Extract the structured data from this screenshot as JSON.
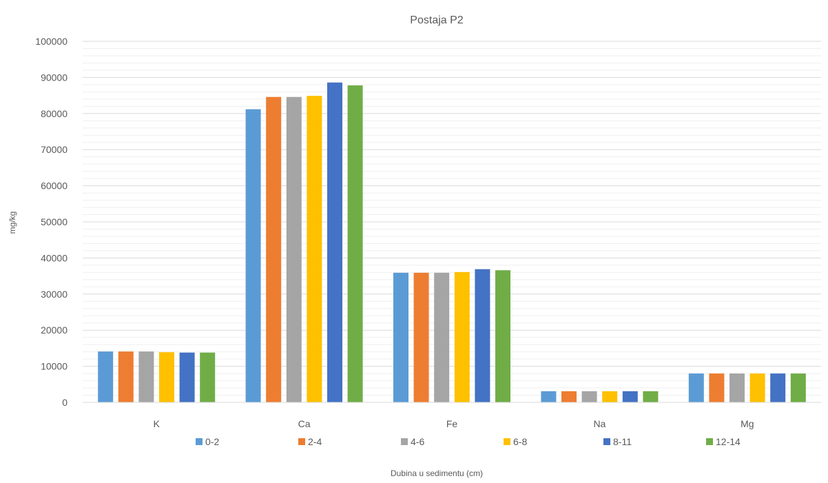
{
  "chart_data": {
    "type": "bar",
    "title": "Postaja P2",
    "xlabel": "Dubina u sedimentu (cm)",
    "ylabel": "mg/kg",
    "categories": [
      "K",
      "Ca",
      "Fe",
      "Na",
      "Mg"
    ],
    "ylim": [
      0,
      100000
    ],
    "yticks": [
      "0",
      "10000",
      "20000",
      "30000",
      "40000",
      "50000",
      "60000",
      "70000",
      "80000",
      "90000",
      "100000"
    ],
    "grid": true,
    "legend_position": "bottom",
    "series": [
      {
        "name": "0-2",
        "color": "#5B9BD5",
        "values": [
          14100,
          81200,
          35900,
          3100,
          8000
        ]
      },
      {
        "name": "2-4",
        "color": "#ED7D31",
        "values": [
          14100,
          84600,
          35900,
          3100,
          8000
        ]
      },
      {
        "name": "4-6",
        "color": "#A5A5A5",
        "values": [
          14100,
          84600,
          35900,
          3100,
          8000
        ]
      },
      {
        "name": "6-8",
        "color": "#FFC000",
        "values": [
          13900,
          84900,
          36100,
          3100,
          8000
        ]
      },
      {
        "name": "8-11",
        "color": "#4472C4",
        "values": [
          13800,
          88600,
          36900,
          3100,
          8000
        ]
      },
      {
        "name": "12-14",
        "color": "#70AD47",
        "values": [
          13800,
          87800,
          36600,
          3100,
          8000
        ]
      }
    ]
  }
}
